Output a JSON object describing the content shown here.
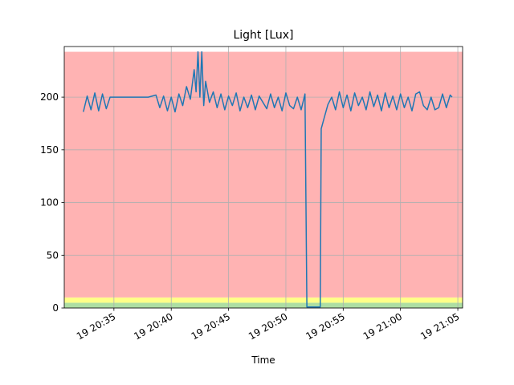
{
  "chart_data": {
    "type": "line",
    "title": "Light [Lux]",
    "x_label": "Time",
    "xlim": [
      "19 20:30:40",
      "19 21:05:25"
    ],
    "xticks": [
      "19 20:35",
      "19 20:40",
      "19 20:45",
      "19 20:50",
      "19 20:55",
      "19 21:00",
      "19 21:05"
    ],
    "ylim": [
      0,
      248
    ],
    "yticks": [
      0,
      50,
      100,
      150,
      200
    ],
    "grid": true,
    "bands": [
      {
        "from": 0,
        "to": 5,
        "color": "#addea2"
      },
      {
        "from": 5,
        "to": 10,
        "color": "#ffff88"
      },
      {
        "from": 10,
        "to": 243,
        "color": "#ffb3b3"
      }
    ],
    "x": [
      "19 20:32:20",
      "19 20:32:40",
      "19 20:33:00",
      "19 20:33:20",
      "19 20:33:40",
      "19 20:34:00",
      "19 20:34:20",
      "19 20:34:40",
      "19 20:35:00",
      "19 20:36:00",
      "19 20:37:00",
      "19 20:38:00",
      "19 20:38:40",
      "19 20:39:00",
      "19 20:39:20",
      "19 20:39:40",
      "19 20:40:00",
      "19 20:40:20",
      "19 20:40:40",
      "19 20:41:00",
      "19 20:41:20",
      "19 20:41:40",
      "19 20:42:00",
      "19 20:42:10",
      "19 20:42:20",
      "19 20:42:30",
      "19 20:42:40",
      "19 20:42:50",
      "19 20:43:00",
      "19 20:43:20",
      "19 20:43:40",
      "19 20:44:00",
      "19 20:44:20",
      "19 20:44:40",
      "19 20:45:00",
      "19 20:45:20",
      "19 20:45:40",
      "19 20:46:00",
      "19 20:46:20",
      "19 20:46:40",
      "19 20:47:00",
      "19 20:47:20",
      "19 20:47:40",
      "19 20:48:00",
      "19 20:48:20",
      "19 20:48:40",
      "19 20:49:00",
      "19 20:49:20",
      "19 20:49:40",
      "19 20:50:00",
      "19 20:50:20",
      "19 20:50:40",
      "19 20:51:00",
      "19 20:51:20",
      "19 20:51:40",
      "19 20:51:50",
      "19 20:52:30",
      "19 20:53:00",
      "19 20:53:05",
      "19 20:53:20",
      "19 20:53:40",
      "19 20:54:00",
      "19 20:54:20",
      "19 20:54:40",
      "19 20:55:00",
      "19 20:55:20",
      "19 20:55:40",
      "19 20:56:00",
      "19 20:56:20",
      "19 20:56:40",
      "19 20:57:00",
      "19 20:57:20",
      "19 20:57:40",
      "19 20:58:00",
      "19 20:58:20",
      "19 20:58:40",
      "19 20:59:00",
      "19 20:59:20",
      "19 20:59:40",
      "19 21:00:00",
      "19 21:00:20",
      "19 21:00:40",
      "19 21:01:00",
      "19 21:01:20",
      "19 21:01:40",
      "19 21:02:00",
      "19 21:02:20",
      "19 21:02:40",
      "19 21:03:00",
      "19 21:03:20",
      "19 21:03:40",
      "19 21:04:00",
      "19 21:04:20",
      "19 21:04:30"
    ],
    "series": [
      {
        "color": "#1f77b4",
        "values": [
          186,
          201,
          188,
          204,
          187,
          203,
          189,
          200,
          200,
          200,
          200,
          200,
          202,
          190,
          201,
          187,
          200,
          186,
          203,
          192,
          210,
          198,
          226,
          205,
          243,
          200,
          243,
          192,
          215,
          195,
          205,
          190,
          203,
          188,
          201,
          192,
          204,
          187,
          200,
          190,
          202,
          188,
          201,
          195,
          189,
          203,
          190,
          200,
          187,
          204,
          192,
          189,
          200,
          188,
          203,
          1,
          1,
          1,
          170,
          180,
          193,
          200,
          188,
          205,
          190,
          202,
          187,
          204,
          192,
          200,
          188,
          205,
          191,
          202,
          187,
          204,
          190,
          201,
          188,
          203,
          190,
          200,
          187,
          203,
          205,
          192,
          188,
          200,
          188,
          190,
          203,
          190,
          202,
          200
        ]
      }
    ]
  }
}
